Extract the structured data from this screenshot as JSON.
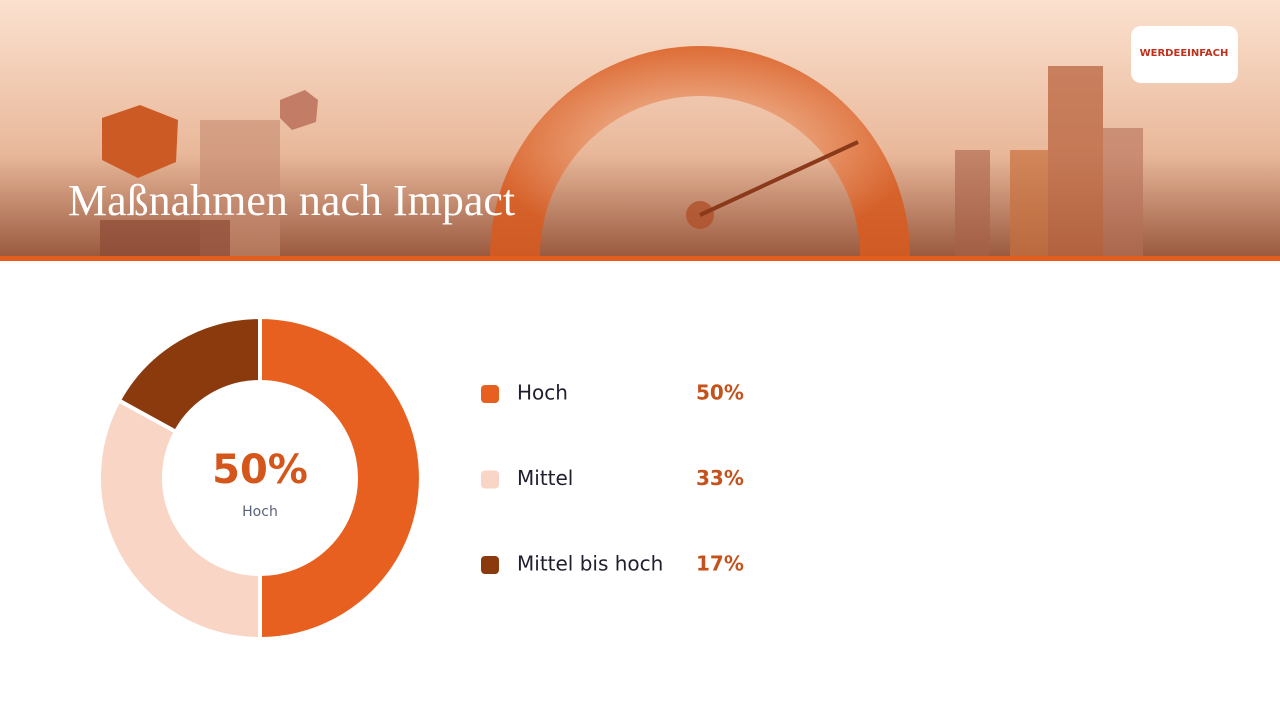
{
  "header": {
    "logo": "WERDEEINFACH"
  },
  "chart_data": {
    "type": "donut",
    "title": "Maßnahmen nach Impact",
    "categories": [
      "Hoch",
      "Mittel",
      "Mittel bis hoch"
    ],
    "values": [
      50,
      33,
      17
    ],
    "value_labels": [
      "50%",
      "33%",
      "17%"
    ],
    "colors": [
      "#e8601f",
      "#f8d5c4",
      "#8b3a0e"
    ]
  }
}
